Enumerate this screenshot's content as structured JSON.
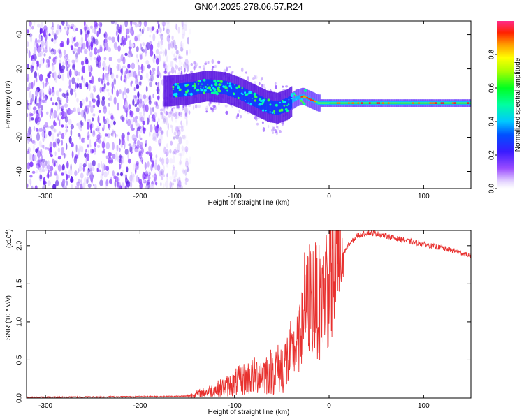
{
  "title": "GN04.2025.278.06.57.R24",
  "colors": {
    "snr_line": "#e8312f",
    "axis": "#000000",
    "background": "#ffffff"
  },
  "chart_data": [
    {
      "type": "heatmap",
      "name": "spectrogram",
      "xlabel": "Height of straight line (km)",
      "ylabel": "Frequency (Hz)",
      "xlim": [
        -320,
        150
      ],
      "ylim": [
        -50,
        48
      ],
      "xticks": [
        -300,
        -200,
        -100,
        0,
        100
      ],
      "xtick_labels": [
        "-300",
        "-200",
        "-100",
        "0",
        "100"
      ],
      "yticks": [
        -40,
        -20,
        0,
        20,
        40
      ],
      "ytick_labels": [
        "-40",
        "-20",
        "0",
        "20",
        "40"
      ],
      "colorbar": {
        "label": "Normalized spectral amplitude",
        "range": [
          0,
          1
        ],
        "ticks": [
          0.0,
          0.2,
          0.4,
          0.6,
          0.8
        ],
        "tick_labels": [
          "0.0",
          "0.2",
          "0.4",
          "0.6",
          "0.8"
        ],
        "colormap": "rainbow (white-violet-blue-cyan-green-yellow-red-pink)"
      },
      "signal_track": {
        "x": [
          -170,
          -150,
          -130,
          -110,
          -95,
          -80,
          -65,
          -55,
          -45,
          -35,
          -28,
          -20,
          -12,
          0,
          50,
          100,
          150
        ],
        "freq": [
          7,
          8,
          10,
          9,
          6,
          2,
          -2,
          -3,
          -1,
          3,
          4,
          2,
          0,
          0,
          0,
          0,
          0
        ]
      },
      "noise_region_x": [
        -320,
        -155
      ]
    },
    {
      "type": "line",
      "name": "snr",
      "xlabel": "Height of straight line (km)",
      "ylabel": "SNR (10 * v/v)",
      "y_multiplier_label": "(x10",
      "y_multiplier_exp": "4",
      "xlim": [
        -320,
        150
      ],
      "ylim": [
        0,
        22000
      ],
      "xticks": [
        -300,
        -200,
        -100,
        0,
        100
      ],
      "xtick_labels": [
        "-300",
        "-200",
        "-100",
        "0",
        "100"
      ],
      "yticks": [
        0,
        5000,
        10000,
        15000,
        20000
      ],
      "ytick_labels": [
        "0.0",
        "0.5",
        "1.0",
        "1.5",
        "2.0"
      ],
      "series": [
        {
          "name": "SNR",
          "x": [
            -320,
            -250,
            -180,
            -150,
            -130,
            -110,
            -90,
            -70,
            -50,
            -40,
            -30,
            -25,
            -20,
            -15,
            -10,
            -5,
            0,
            10,
            20,
            30,
            40,
            50,
            70,
            100,
            130,
            150
          ],
          "values": [
            100,
            150,
            200,
            250,
            800,
            1500,
            2500,
            3200,
            4000,
            5500,
            8000,
            11000,
            13500,
            13000,
            12500,
            14000,
            16000,
            18000,
            20000,
            21300,
            21700,
            21600,
            21000,
            20200,
            19400,
            18700
          ]
        }
      ]
    }
  ]
}
